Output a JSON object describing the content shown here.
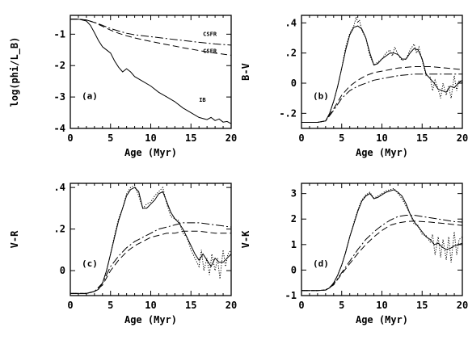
{
  "chart_data": [
    {
      "type": "line",
      "panel_label": "(a)",
      "xlabel": "Age (Myr)",
      "ylabel": "log(phi/L_B)",
      "xlim": [
        0,
        20
      ],
      "ylim": [
        -4,
        -0.4
      ],
      "xticks": [
        "0",
        "5",
        "10",
        "15",
        "20"
      ],
      "yticks": [
        "-4",
        "-3",
        "-2",
        "-1"
      ],
      "ytick_values": [
        -4,
        -3,
        -2,
        -1
      ],
      "annotations": [
        {
          "text": "CSFR",
          "x": 16.5,
          "y": -1.05
        },
        {
          "text": "CSFR",
          "x": 16.5,
          "y": -1.6
        },
        {
          "text": "IB",
          "x": 16.0,
          "y": -3.15
        }
      ],
      "series": [
        {
          "style": "solid",
          "x": [
            0,
            1,
            2,
            2.5,
            3,
            3.5,
            4,
            4.5,
            5,
            5.5,
            6,
            6.5,
            7,
            7.5,
            8,
            9,
            10,
            11,
            12,
            13,
            14,
            15,
            16,
            17,
            17.5,
            18,
            18.5,
            19,
            19.5,
            20
          ],
          "values": [
            -0.52,
            -0.52,
            -0.58,
            -0.72,
            -0.95,
            -1.2,
            -1.4,
            -1.5,
            -1.6,
            -1.85,
            -2.05,
            -2.2,
            -2.1,
            -2.2,
            -2.35,
            -2.5,
            -2.65,
            -2.85,
            -3.0,
            -3.15,
            -3.35,
            -3.5,
            -3.65,
            -3.72,
            -3.65,
            -3.75,
            -3.7,
            -3.8,
            -3.78,
            -3.85
          ]
        },
        {
          "style": "dash-dot",
          "x": [
            0,
            1,
            2,
            3,
            4,
            5,
            6,
            7,
            8,
            10,
            12,
            14,
            16,
            18,
            20
          ],
          "values": [
            -0.52,
            -0.52,
            -0.55,
            -0.62,
            -0.72,
            -0.82,
            -0.9,
            -0.97,
            -1.02,
            -1.08,
            -1.14,
            -1.2,
            -1.26,
            -1.31,
            -1.35
          ]
        },
        {
          "style": "dashed",
          "x": [
            0,
            1,
            2,
            3,
            4,
            5,
            6,
            7,
            8,
            10,
            12,
            14,
            16,
            18,
            20
          ],
          "values": [
            -0.52,
            -0.52,
            -0.55,
            -0.63,
            -0.75,
            -0.87,
            -0.97,
            -1.05,
            -1.12,
            -1.23,
            -1.33,
            -1.43,
            -1.52,
            -1.6,
            -1.67
          ]
        }
      ]
    },
    {
      "type": "line",
      "panel_label": "(b)",
      "xlabel": "Age (Myr)",
      "ylabel": "B-V",
      "xlim": [
        0,
        20
      ],
      "ylim": [
        -0.3,
        0.45
      ],
      "xticks": [
        "0",
        "5",
        "10",
        "15",
        "20"
      ],
      "yticks": [
        "-.2",
        "0",
        ".2",
        ".4"
      ],
      "ytick_values": [
        -0.2,
        0,
        0.2,
        0.4
      ],
      "series": [
        {
          "style": "solid",
          "x": [
            0,
            2,
            3,
            3.5,
            4,
            4.5,
            5,
            5.5,
            6,
            6.5,
            7,
            7.5,
            8,
            8.5,
            9,
            9.5,
            10,
            10.5,
            11,
            11.5,
            12,
            12.5,
            13,
            13.5,
            14,
            14.5,
            15,
            15.5,
            16,
            16.5,
            17,
            17.5,
            18,
            18.5,
            19,
            19.5,
            20
          ],
          "values": [
            -0.26,
            -0.26,
            -0.25,
            -0.2,
            -0.12,
            -0.02,
            0.1,
            0.22,
            0.32,
            0.37,
            0.38,
            0.36,
            0.3,
            0.2,
            0.12,
            0.13,
            0.16,
            0.18,
            0.2,
            0.2,
            0.19,
            0.16,
            0.16,
            0.2,
            0.23,
            0.22,
            0.16,
            0.06,
            0.03,
            0.0,
            -0.04,
            -0.05,
            -0.06,
            -0.02,
            -0.03,
            0.0,
            0.02
          ]
        },
        {
          "style": "dotted",
          "x": [
            0,
            2,
            3,
            3.5,
            4,
            4.5,
            5,
            5.5,
            6,
            6.5,
            6.8,
            7,
            7.2,
            7.5,
            8,
            8.5,
            9,
            9.5,
            10,
            10.5,
            11,
            11.3,
            11.6,
            12,
            12.5,
            13,
            13.5,
            14,
            14.3,
            14.6,
            15,
            15.5,
            16,
            16.3,
            16.6,
            17,
            17.3,
            17.6,
            18,
            18.3,
            18.6,
            19,
            19.3,
            19.6,
            20
          ],
          "values": [
            -0.26,
            -0.26,
            -0.25,
            -0.2,
            -0.12,
            -0.02,
            0.1,
            0.24,
            0.33,
            0.38,
            0.44,
            0.4,
            0.42,
            0.35,
            0.3,
            0.18,
            0.12,
            0.14,
            0.16,
            0.2,
            0.22,
            0.18,
            0.24,
            0.19,
            0.15,
            0.16,
            0.22,
            0.26,
            0.2,
            0.24,
            0.15,
            0.05,
            0.04,
            -0.05,
            0.02,
            -0.04,
            -0.1,
            0.0,
            -0.08,
            -0.02,
            -0.1,
            0.05,
            -0.05,
            0.02,
            0.0
          ]
        },
        {
          "style": "dash-dot",
          "x": [
            0,
            2,
            3,
            4,
            5,
            6,
            7,
            8,
            9,
            10,
            11,
            12,
            14,
            16,
            18,
            20
          ],
          "values": [
            -0.26,
            -0.26,
            -0.25,
            -0.18,
            -0.1,
            -0.05,
            -0.02,
            0.0,
            0.02,
            0.03,
            0.04,
            0.05,
            0.06,
            0.06,
            0.06,
            0.06
          ]
        },
        {
          "style": "dashed",
          "x": [
            0,
            2,
            3,
            4,
            5,
            6,
            7,
            8,
            9,
            10,
            11,
            12,
            14,
            16,
            18,
            20
          ],
          "values": [
            -0.26,
            -0.26,
            -0.25,
            -0.17,
            -0.08,
            -0.02,
            0.02,
            0.05,
            0.07,
            0.08,
            0.09,
            0.1,
            0.11,
            0.11,
            0.1,
            0.09
          ]
        }
      ]
    },
    {
      "type": "line",
      "panel_label": "(c)",
      "xlabel": "Age (Myr)",
      "ylabel": "V-R",
      "xlim": [
        0,
        20
      ],
      "ylim": [
        -0.12,
        0.42
      ],
      "xticks": [
        "0",
        "5",
        "10",
        "15",
        "20"
      ],
      "yticks": [
        "0",
        ".2",
        ".4"
      ],
      "ytick_values": [
        0,
        0.2,
        0.4
      ],
      "series": [
        {
          "style": "solid",
          "x": [
            0,
            2,
            3,
            3.5,
            4,
            4.5,
            5,
            5.5,
            6,
            6.5,
            7,
            7.5,
            8,
            8.5,
            9,
            9.5,
            10,
            10.5,
            11,
            11.5,
            12,
            12.5,
            13,
            13.5,
            14,
            14.5,
            15,
            15.5,
            16,
            16.5,
            17,
            17.5,
            18,
            18.5,
            19,
            19.5,
            20
          ],
          "values": [
            -0.11,
            -0.11,
            -0.1,
            -0.09,
            -0.06,
            0.0,
            0.08,
            0.16,
            0.24,
            0.3,
            0.36,
            0.39,
            0.4,
            0.38,
            0.3,
            0.3,
            0.32,
            0.34,
            0.37,
            0.38,
            0.33,
            0.28,
            0.25,
            0.23,
            0.2,
            0.16,
            0.12,
            0.08,
            0.05,
            0.08,
            0.05,
            0.02,
            0.06,
            0.04,
            0.04,
            0.06,
            0.08
          ]
        },
        {
          "style": "dotted",
          "x": [
            0,
            2,
            3,
            3.5,
            4,
            4.5,
            5,
            5.5,
            6,
            6.5,
            7,
            7.5,
            8,
            8.5,
            9,
            9.5,
            10,
            10.5,
            11,
            11.5,
            12,
            12.5,
            13,
            13.5,
            14,
            14.5,
            15,
            15.5,
            16,
            16.3,
            16.6,
            17,
            17.3,
            17.6,
            18,
            18.3,
            18.6,
            19,
            19.3,
            19.6,
            20
          ],
          "values": [
            -0.11,
            -0.11,
            -0.1,
            -0.09,
            -0.06,
            0.0,
            0.08,
            0.17,
            0.25,
            0.3,
            0.37,
            0.4,
            0.41,
            0.36,
            0.3,
            0.32,
            0.33,
            0.36,
            0.38,
            0.4,
            0.32,
            0.26,
            0.25,
            0.24,
            0.18,
            0.16,
            0.1,
            0.06,
            0.02,
            0.1,
            0.0,
            0.06,
            -0.02,
            0.08,
            0.0,
            0.06,
            -0.04,
            0.1,
            0.02,
            0.08,
            0.1
          ]
        },
        {
          "style": "dash-dot",
          "x": [
            0,
            2,
            3,
            4,
            5,
            6,
            7,
            8,
            9,
            10,
            11,
            12,
            13,
            14,
            16,
            18,
            20
          ],
          "values": [
            -0.11,
            -0.11,
            -0.1,
            -0.06,
            0.02,
            0.07,
            0.11,
            0.14,
            0.16,
            0.18,
            0.2,
            0.21,
            0.22,
            0.23,
            0.23,
            0.22,
            0.21
          ]
        },
        {
          "style": "dashed",
          "x": [
            0,
            2,
            3,
            4,
            5,
            6,
            7,
            8,
            9,
            10,
            11,
            12,
            13,
            14,
            16,
            18,
            20
          ],
          "values": [
            -0.11,
            -0.11,
            -0.1,
            -0.07,
            0.0,
            0.05,
            0.09,
            0.12,
            0.14,
            0.16,
            0.17,
            0.18,
            0.18,
            0.19,
            0.19,
            0.18,
            0.18
          ]
        }
      ]
    },
    {
      "type": "line",
      "panel_label": "(d)",
      "xlabel": "Age (Myr)",
      "ylabel": "V-K",
      "xlim": [
        0,
        20
      ],
      "ylim": [
        -1,
        3.4
      ],
      "xticks": [
        "0",
        "5",
        "10",
        "15",
        "20"
      ],
      "yticks": [
        "-1",
        "0",
        "1",
        "2",
        "3"
      ],
      "ytick_values": [
        -1,
        0,
        1,
        2,
        3
      ],
      "series": [
        {
          "style": "solid",
          "x": [
            0,
            2,
            3,
            3.5,
            4,
            4.5,
            5,
            5.5,
            6,
            6.5,
            7,
            7.5,
            8,
            8.5,
            9,
            9.5,
            10,
            10.5,
            11,
            11.5,
            12,
            12.5,
            13,
            13.5,
            14,
            14.5,
            15,
            15.5,
            16,
            16.5,
            17,
            17.5,
            18,
            18.5,
            19,
            19.5,
            20
          ],
          "values": [
            -0.8,
            -0.8,
            -0.78,
            -0.7,
            -0.5,
            -0.2,
            0.2,
            0.7,
            1.3,
            1.8,
            2.3,
            2.7,
            2.9,
            3.0,
            2.8,
            2.85,
            2.95,
            3.05,
            3.1,
            3.15,
            3.05,
            2.9,
            2.6,
            2.2,
            1.9,
            1.7,
            1.5,
            1.3,
            1.2,
            1.0,
            1.05,
            0.9,
            0.8,
            0.85,
            0.95,
            1.0,
            1.05
          ]
        },
        {
          "style": "dotted",
          "x": [
            0,
            2,
            3,
            3.5,
            4,
            4.5,
            5,
            5.5,
            6,
            6.5,
            7,
            7.5,
            8,
            8.5,
            9,
            9.5,
            10,
            10.5,
            11,
            11.5,
            12,
            12.5,
            13,
            13.5,
            14,
            14.5,
            15,
            15.5,
            16,
            16.3,
            16.6,
            17,
            17.3,
            17.6,
            18,
            18.3,
            18.6,
            19,
            19.3,
            19.6,
            20
          ],
          "values": [
            -0.8,
            -0.8,
            -0.78,
            -0.7,
            -0.5,
            -0.2,
            0.2,
            0.72,
            1.3,
            1.85,
            2.35,
            2.75,
            2.95,
            3.05,
            2.82,
            2.9,
            3.0,
            3.1,
            3.15,
            3.2,
            3.0,
            2.8,
            2.5,
            2.2,
            1.8,
            1.75,
            1.4,
            1.35,
            1.1,
            1.4,
            0.6,
            1.3,
            0.5,
            1.2,
            0.4,
            1.3,
            0.3,
            1.5,
            0.6,
            1.2,
            1.3
          ]
        },
        {
          "style": "dash-dot",
          "x": [
            0,
            2,
            3,
            4,
            5,
            6,
            7,
            8,
            9,
            10,
            11,
            12,
            13,
            14,
            15,
            16,
            17,
            18,
            19,
            20
          ],
          "values": [
            -0.8,
            -0.8,
            -0.78,
            -0.55,
            -0.1,
            0.35,
            0.8,
            1.2,
            1.5,
            1.75,
            1.95,
            2.1,
            2.15,
            2.15,
            2.1,
            2.05,
            2.0,
            1.95,
            1.9,
            1.88
          ]
        },
        {
          "style": "dashed",
          "x": [
            0,
            2,
            3,
            4,
            5,
            6,
            7,
            8,
            9,
            10,
            11,
            12,
            13,
            14,
            15,
            16,
            17,
            18,
            19,
            20
          ],
          "values": [
            -0.8,
            -0.8,
            -0.78,
            -0.58,
            -0.15,
            0.25,
            0.65,
            1.0,
            1.3,
            1.55,
            1.75,
            1.85,
            1.9,
            1.92,
            1.9,
            1.88,
            1.85,
            1.82,
            1.78,
            1.75
          ]
        }
      ]
    }
  ]
}
